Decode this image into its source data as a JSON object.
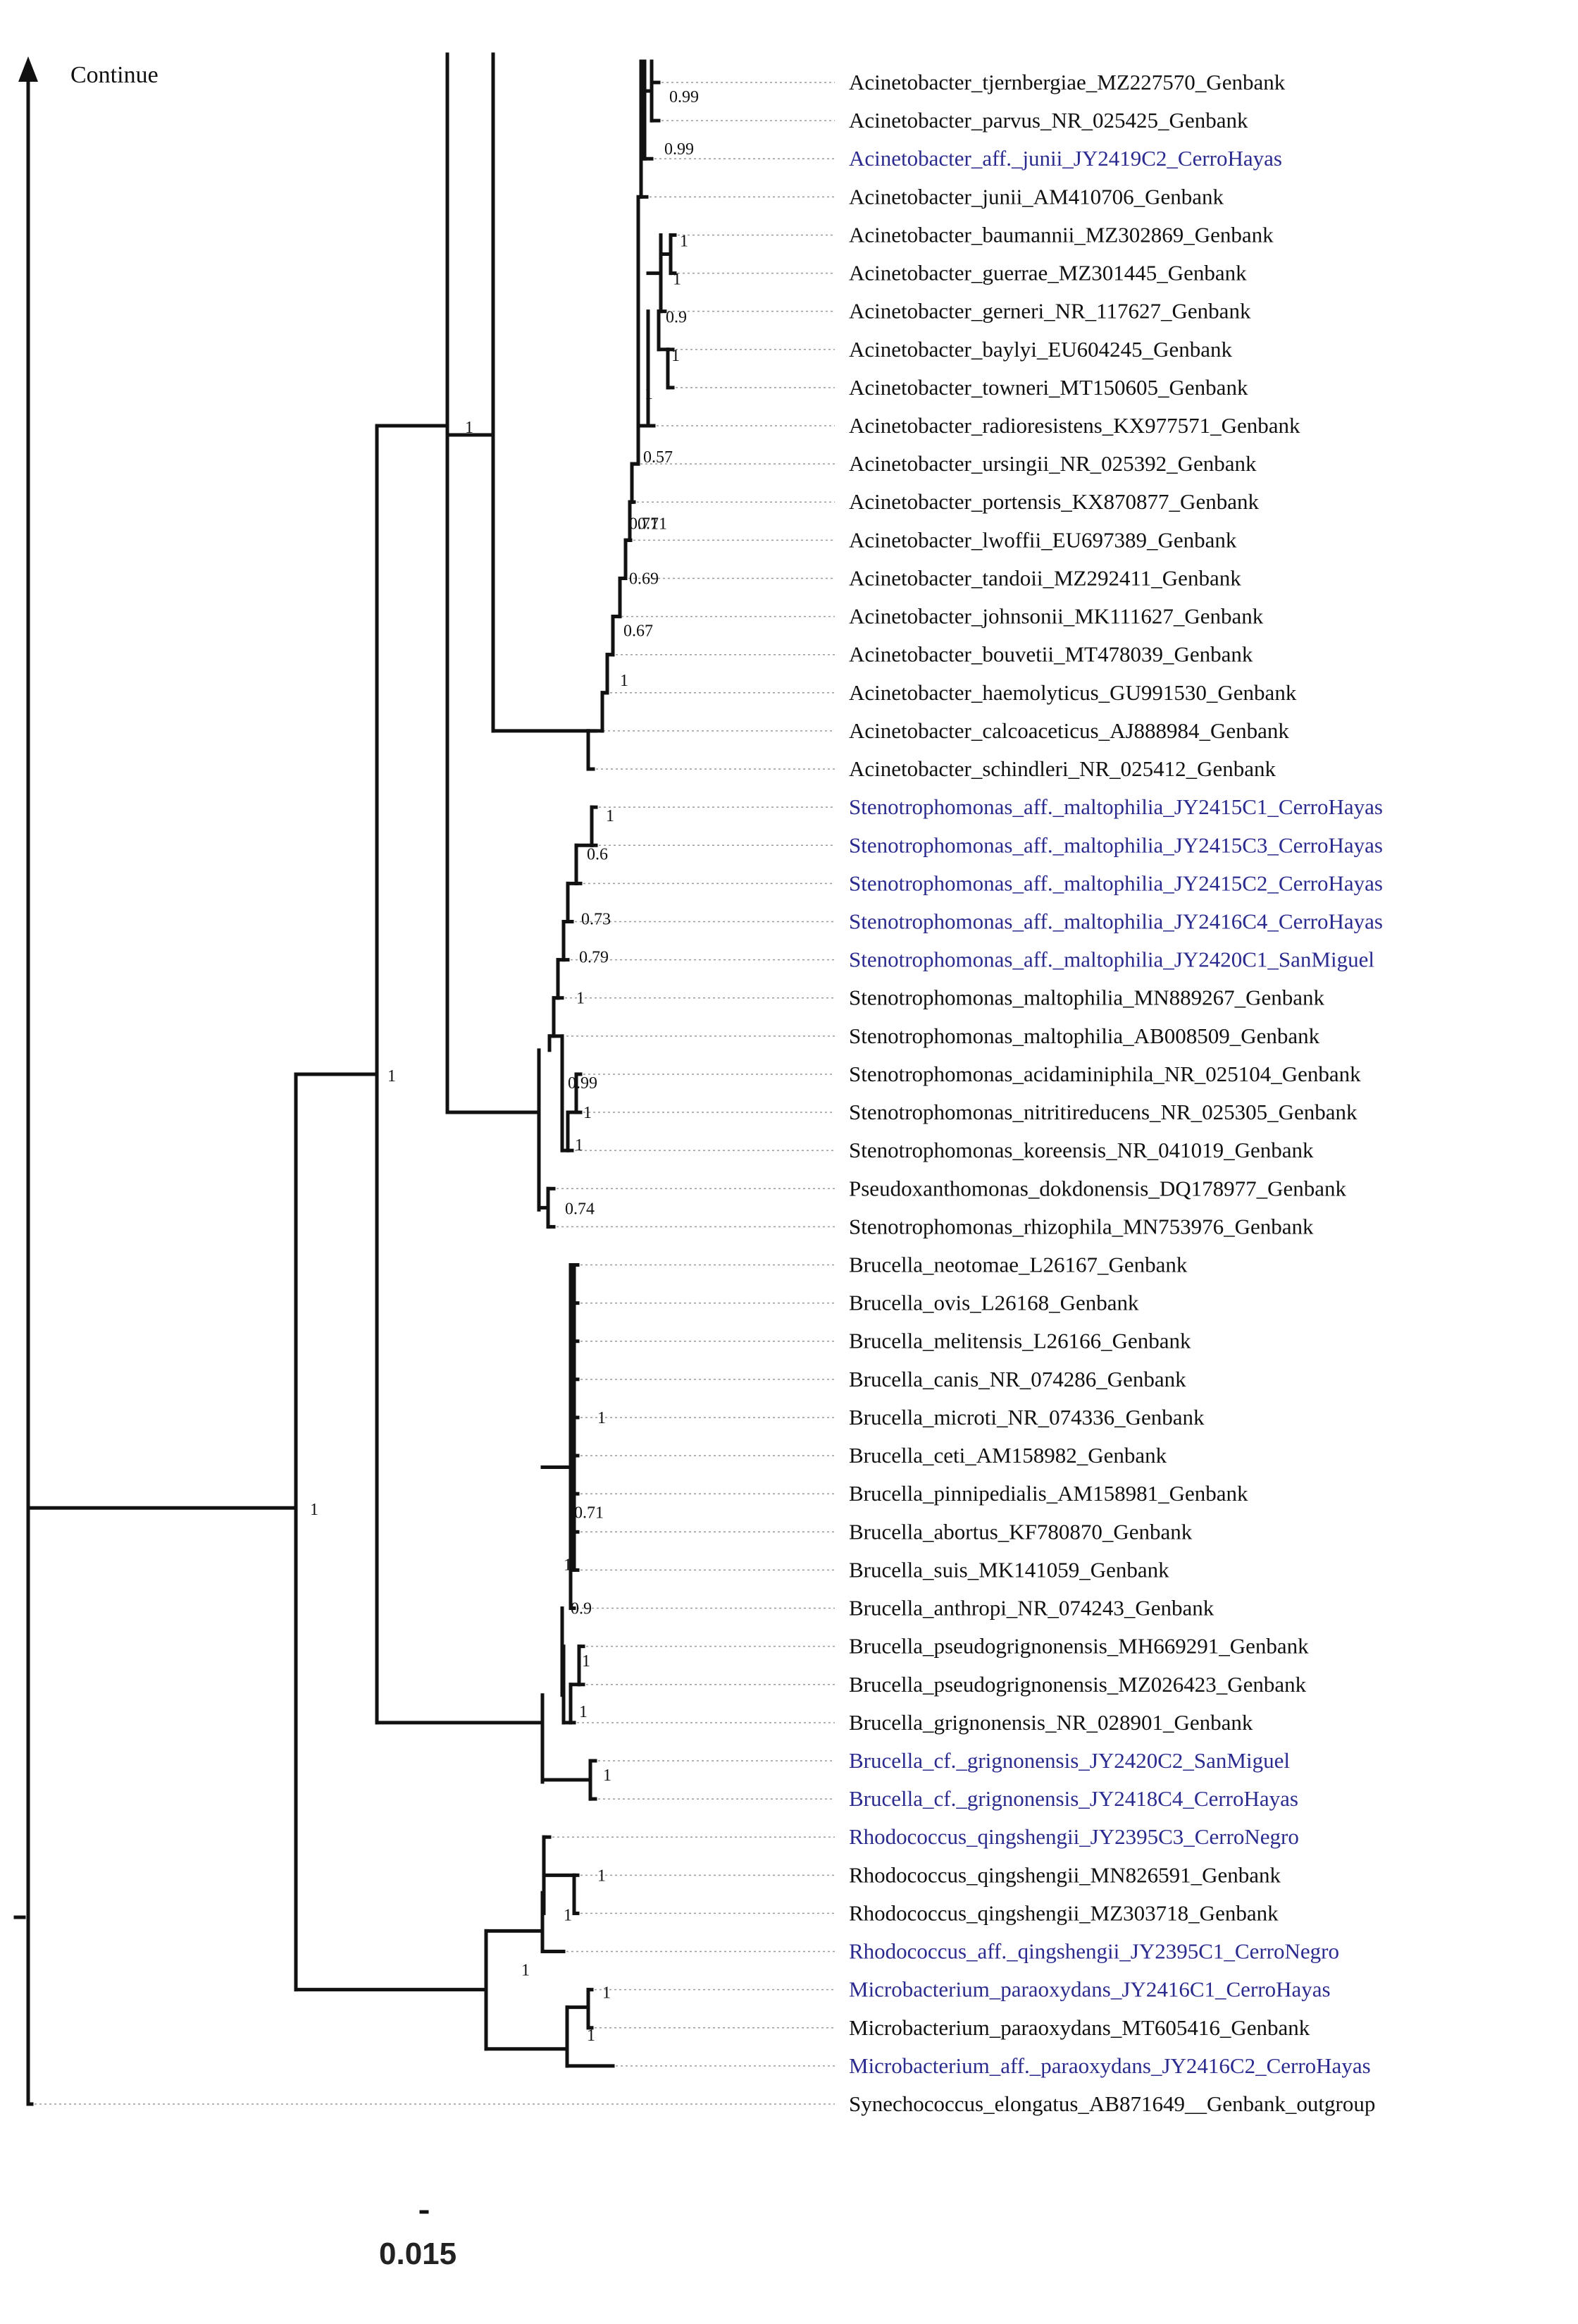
{
  "header": {
    "continue_label": "Continue"
  },
  "scale_bar": {
    "label": "0.015"
  },
  "colors": {
    "own_isolate": "#2b2b8f",
    "reference": "#111111",
    "branch": "#111111"
  },
  "taxa": [
    {
      "label": "Acinetobacter_tjernbergiae_MZ227570_Genbank",
      "own": false
    },
    {
      "label": "Acinetobacter_parvus_NR_025425_Genbank",
      "own": false
    },
    {
      "label": "Acinetobacter_aff._junii_JY2419C2_CerroHayas",
      "own": true
    },
    {
      "label": "Acinetobacter_junii_AM410706_Genbank",
      "own": false
    },
    {
      "label": "Acinetobacter_baumannii_MZ302869_Genbank",
      "own": false
    },
    {
      "label": "Acinetobacter_guerrae_MZ301445_Genbank",
      "own": false
    },
    {
      "label": "Acinetobacter_gerneri_NR_117627_Genbank",
      "own": false
    },
    {
      "label": "Acinetobacter_baylyi_EU604245_Genbank",
      "own": false
    },
    {
      "label": "Acinetobacter_towneri_MT150605_Genbank",
      "own": false
    },
    {
      "label": "Acinetobacter_radioresistens_KX977571_Genbank",
      "own": false
    },
    {
      "label": "Acinetobacter_ursingii_NR_025392_Genbank",
      "own": false
    },
    {
      "label": "Acinetobacter_portensis_KX870877_Genbank",
      "own": false
    },
    {
      "label": "Acinetobacter_lwoffii_EU697389_Genbank",
      "own": false
    },
    {
      "label": "Acinetobacter_tandoii_MZ292411_Genbank",
      "own": false
    },
    {
      "label": "Acinetobacter_johnsonii_MK111627_Genbank",
      "own": false
    },
    {
      "label": "Acinetobacter_bouvetii_MT478039_Genbank",
      "own": false
    },
    {
      "label": "Acinetobacter_haemolyticus_GU991530_Genbank",
      "own": false
    },
    {
      "label": "Acinetobacter_calcoaceticus_AJ888984_Genbank",
      "own": false
    },
    {
      "label": "Acinetobacter_schindleri_NR_025412_Genbank",
      "own": false
    },
    {
      "label": "Stenotrophomonas_aff._maltophilia_JY2415C1_CerroHayas",
      "own": true
    },
    {
      "label": "Stenotrophomonas_aff._maltophilia_JY2415C3_CerroHayas",
      "own": true
    },
    {
      "label": "Stenotrophomonas_aff._maltophilia_JY2415C2_CerroHayas",
      "own": true
    },
    {
      "label": "Stenotrophomonas_aff._maltophilia_JY2416C4_CerroHayas",
      "own": true
    },
    {
      "label": "Stenotrophomonas_aff._maltophilia_JY2420C1_SanMiguel",
      "own": true
    },
    {
      "label": "Stenotrophomonas_maltophilia_MN889267_Genbank",
      "own": false
    },
    {
      "label": "Stenotrophomonas_maltophilia_AB008509_Genbank",
      "own": false
    },
    {
      "label": "Stenotrophomonas_acidaminiphila_NR_025104_Genbank",
      "own": false
    },
    {
      "label": "Stenotrophomonas_nitritireducens_NR_025305_Genbank",
      "own": false
    },
    {
      "label": "Stenotrophomonas_koreensis_NR_041019_Genbank",
      "own": false
    },
    {
      "label": "Pseudoxanthomonas_dokdonensis_DQ178977_Genbank",
      "own": false
    },
    {
      "label": "Stenotrophomonas_rhizophila_MN753976_Genbank",
      "own": false
    },
    {
      "label": "Brucella_neotomae_L26167_Genbank",
      "own": false
    },
    {
      "label": "Brucella_ovis_L26168_Genbank",
      "own": false
    },
    {
      "label": "Brucella_melitensis_L26166_Genbank",
      "own": false
    },
    {
      "label": "Brucella_canis_NR_074286_Genbank",
      "own": false
    },
    {
      "label": "Brucella_microti_NR_074336_Genbank",
      "own": false
    },
    {
      "label": "Brucella_ceti_AM158982_Genbank",
      "own": false
    },
    {
      "label": "Brucella_pinnipedialis_AM158981_Genbank",
      "own": false
    },
    {
      "label": "Brucella_abortus_KF780870_Genbank",
      "own": false
    },
    {
      "label": "Brucella_suis_MK141059_Genbank",
      "own": false
    },
    {
      "label": "Brucella_anthropi_NR_074243_Genbank",
      "own": false
    },
    {
      "label": "Brucella_pseudogrignonensis_MH669291_Genbank",
      "own": false
    },
    {
      "label": "Brucella_pseudogrignonensis_MZ026423_Genbank",
      "own": false
    },
    {
      "label": "Brucella_grignonensis_NR_028901_Genbank",
      "own": false
    },
    {
      "label": "Brucella_cf._grignonensis_JY2420C2_SanMiguel",
      "own": true
    },
    {
      "label": "Brucella_cf._grignonensis_JY2418C4_CerroHayas",
      "own": true
    },
    {
      "label": "Rhodococcus_qingshengii_JY2395C3_CerroNegro",
      "own": true
    },
    {
      "label": "Rhodococcus_qingshengii_MN826591_Genbank",
      "own": false
    },
    {
      "label": "Rhodococcus_qingshengii_MZ303718_Genbank",
      "own": false
    },
    {
      "label": "Rhodococcus_aff._qingshengii_JY2395C1_CerroNegro",
      "own": true
    },
    {
      "label": "Microbacterium_paraoxydans_JY2416C1_CerroHayas",
      "own": true
    },
    {
      "label": "Microbacterium_paraoxydans_MT605416_Genbank",
      "own": false
    },
    {
      "label": "Microbacterium_aff._paraoxydans_JY2416C2_CerroHayas",
      "own": true
    },
    {
      "label": "Synechococcus_elongatus_AB871649__Genbank_outgroup",
      "own": false
    }
  ],
  "supports": [
    "0.99",
    "0.99",
    "1",
    "1",
    "0.9",
    "1",
    "1",
    "0.57",
    "0.71",
    "0.71",
    "0.69",
    "0.67",
    "1",
    "1",
    "0.6",
    "0.73",
    "0.79",
    "1",
    "0.99",
    "1",
    "1",
    "0.74",
    "1",
    "0.71",
    "0.9",
    "1",
    "1",
    "1",
    "1",
    "1",
    "1",
    "1",
    "1",
    "1",
    "1",
    "1",
    "1"
  ]
}
